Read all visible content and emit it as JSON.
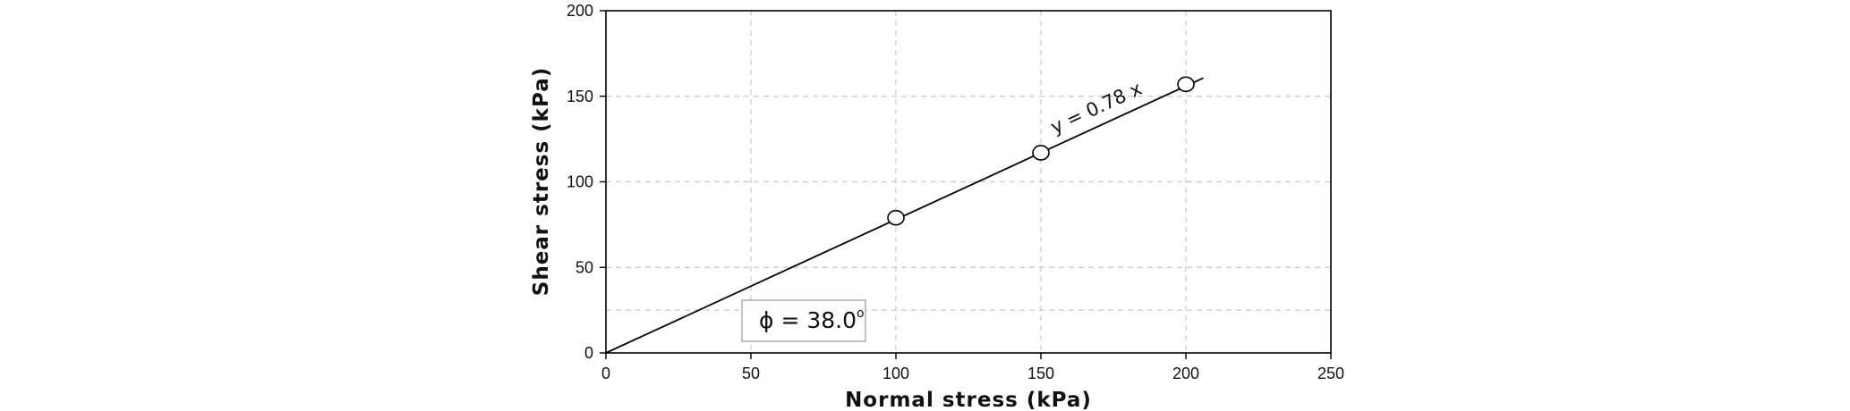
{
  "chart_data": {
    "type": "scatter",
    "xlabel": "Normal stress (kPa)",
    "ylabel": "Shear stress (kPa)",
    "xlim": [
      0,
      250
    ],
    "ylim": [
      0,
      200
    ],
    "xticks": [
      0,
      50,
      100,
      150,
      200,
      250
    ],
    "yticks": [
      0,
      50,
      100,
      150,
      200
    ],
    "grid": true,
    "series": [
      {
        "points": [
          {
            "x": 100,
            "y": 79
          },
          {
            "x": 150,
            "y": 117
          },
          {
            "x": 200,
            "y": 157
          }
        ],
        "marker": "open-circle"
      }
    ],
    "fit_line": {
      "slope": 0.78,
      "x_range": [
        0,
        206
      ],
      "label": "y = 0.78 x"
    },
    "annotation_box": {
      "phi_symbol": "ϕ",
      "equals_value": " = 38.0",
      "degree": "o"
    },
    "colors": {
      "line": "#000000",
      "grid": "#c8c8c8",
      "marker_fill": "#ffffff"
    }
  }
}
